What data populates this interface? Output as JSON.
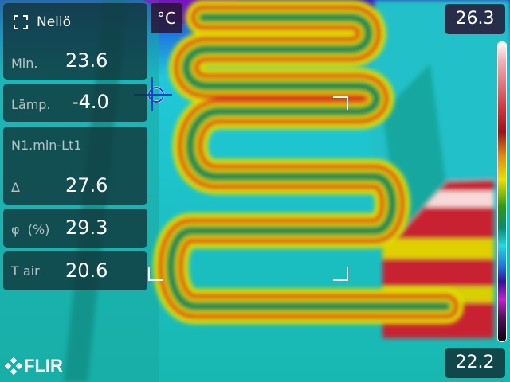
{
  "measurement": {
    "box_icon": "dashed-square-icon",
    "title": "Neliö",
    "min_label": "Min.",
    "min_value": "23.6",
    "temp_label": "Lämp.",
    "temp_value": "-4.0",
    "diff_title": "N1.min-Lt1",
    "delta_label": "Δ",
    "delta_value": "27.6",
    "humidity_label": "φ  (%)",
    "humidity_value": "29.3",
    "air_label": "T air",
    "air_value": "20.6"
  },
  "unit": "°C",
  "scale": {
    "max": "26.3",
    "min": "22.2",
    "palette": "iron-rainbow"
  },
  "brand": {
    "logo": "FLIR"
  }
}
